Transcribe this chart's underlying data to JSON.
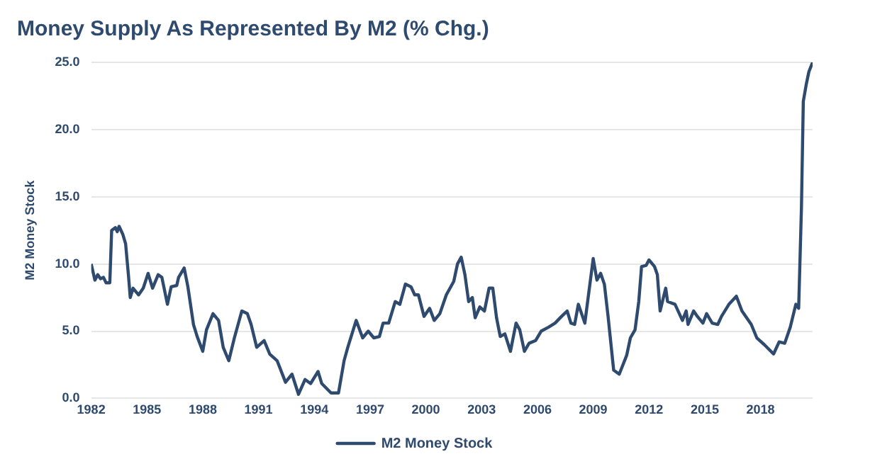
{
  "chart_data": {
    "type": "line",
    "title": "Money Supply As Represented By M2 (% Chg.)",
    "ylabel": "M2 Money Stock",
    "xlim": [
      1982,
      2020.8
    ],
    "xticks": [
      1982,
      1985,
      1988,
      1991,
      1994,
      1997,
      2000,
      2003,
      2006,
      2009,
      2012,
      2015,
      2018
    ],
    "ylim": [
      0,
      25
    ],
    "yticks": [
      {
        "value": 0,
        "label": "0.0"
      },
      {
        "value": 5,
        "label": "5.0"
      },
      {
        "value": 10,
        "label": "10.0"
      },
      {
        "value": 15,
        "label": "15.0"
      },
      {
        "value": 20,
        "label": "20.0"
      },
      {
        "value": 25,
        "label": "25.0"
      }
    ],
    "grid": "y",
    "legend": "bottom",
    "marker": "none",
    "line_style": "solid",
    "series": [
      {
        "name": "M2 Money Stock",
        "color": "#2e4a6f",
        "x": [
          1982.0,
          1982.2,
          1982.35,
          1982.5,
          1982.66,
          1982.8,
          1983.0,
          1983.1,
          1983.3,
          1983.4,
          1983.5,
          1983.7,
          1983.85,
          1984.0,
          1984.1,
          1984.25,
          1984.55,
          1984.8,
          1985.06,
          1985.3,
          1985.6,
          1985.8,
          1986.1,
          1986.3,
          1986.6,
          1986.7,
          1987.0,
          1987.2,
          1987.5,
          1987.7,
          1988.0,
          1988.2,
          1988.55,
          1988.85,
          1989.1,
          1989.4,
          1989.7,
          1989.9,
          1990.1,
          1990.4,
          1990.6,
          1990.9,
          1991.3,
          1991.6,
          1992.0,
          1992.45,
          1992.8,
          1993.15,
          1993.5,
          1993.8,
          1994.2,
          1994.4,
          1994.9,
          1995.3,
          1995.6,
          1995.8,
          1996.25,
          1996.6,
          1996.9,
          1997.2,
          1997.5,
          1997.7,
          1998.0,
          1998.35,
          1998.6,
          1998.9,
          1999.2,
          1999.4,
          1999.6,
          1999.9,
          2000.2,
          2000.45,
          2000.75,
          2001.1,
          2001.5,
          2001.7,
          2001.9,
          2002.1,
          2002.3,
          2002.5,
          2002.65,
          2002.9,
          2003.15,
          2003.4,
          2003.6,
          2003.8,
          2004.0,
          2004.25,
          2004.55,
          2004.85,
          2005.05,
          2005.3,
          2005.55,
          2005.9,
          2006.2,
          2006.6,
          2006.95,
          2007.3,
          2007.6,
          2007.8,
          2008.0,
          2008.2,
          2008.55,
          2009.0,
          2009.2,
          2009.4,
          2009.6,
          2009.8,
          2010.1,
          2010.4,
          2010.6,
          2010.8,
          2011.0,
          2011.25,
          2011.45,
          2011.6,
          2011.85,
          2012.0,
          2012.3,
          2012.45,
          2012.6,
          2012.9,
          2013.0,
          2013.4,
          2013.8,
          2014.0,
          2014.1,
          2014.4,
          2014.6,
          2014.9,
          2015.1,
          2015.4,
          2015.7,
          2015.9,
          2016.3,
          2016.7,
          2017.0,
          2017.5,
          2017.8,
          2018.2,
          2018.7,
          2019.0,
          2019.3,
          2019.6,
          2019.9,
          2020.05,
          2020.2,
          2020.3,
          2020.45,
          2020.6,
          2020.8
        ],
        "values": [
          10.0,
          8.8,
          9.2,
          8.9,
          9.0,
          8.6,
          8.6,
          12.5,
          12.7,
          12.4,
          12.8,
          12.2,
          11.5,
          9.2,
          7.5,
          8.2,
          7.7,
          8.2,
          9.3,
          8.2,
          9.2,
          9.0,
          7.0,
          8.3,
          8.4,
          9.0,
          9.7,
          8.3,
          5.5,
          4.6,
          3.5,
          5.1,
          6.3,
          5.8,
          3.8,
          2.8,
          4.5,
          5.5,
          6.5,
          6.3,
          5.5,
          3.8,
          4.3,
          3.3,
          2.8,
          1.2,
          1.8,
          0.3,
          1.4,
          1.1,
          2.0,
          1.1,
          0.4,
          0.4,
          2.8,
          3.8,
          5.8,
          4.5,
          5.0,
          4.5,
          4.6,
          5.6,
          5.6,
          7.2,
          7.0,
          8.5,
          8.3,
          7.7,
          7.7,
          6.1,
          6.7,
          5.8,
          6.3,
          7.7,
          8.7,
          10.0,
          10.5,
          9.2,
          7.2,
          7.5,
          6.0,
          6.8,
          6.5,
          8.2,
          8.2,
          6.0,
          4.6,
          4.8,
          3.5,
          5.6,
          5.1,
          3.5,
          4.1,
          4.3,
          5.0,
          5.3,
          5.6,
          6.1,
          6.5,
          5.6,
          5.5,
          7.0,
          5.6,
          10.4,
          8.8,
          9.3,
          8.5,
          6.1,
          2.1,
          1.8,
          2.5,
          3.2,
          4.5,
          5.1,
          7.2,
          9.8,
          9.9,
          10.3,
          9.8,
          9.2,
          6.5,
          8.2,
          7.2,
          7.0,
          5.8,
          6.5,
          5.5,
          6.5,
          6.1,
          5.6,
          6.3,
          5.6,
          5.5,
          6.1,
          7.0,
          7.6,
          6.5,
          5.5,
          4.5,
          4.0,
          3.3,
          4.2,
          4.1,
          5.3,
          7.0,
          6.7,
          14.2,
          22.1,
          23.3,
          24.3,
          25.0
        ]
      }
    ]
  }
}
